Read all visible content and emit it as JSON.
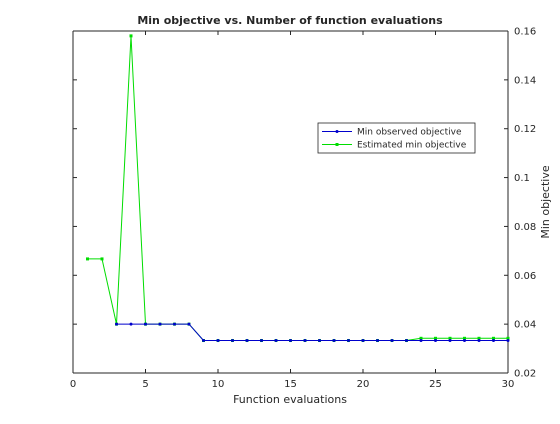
{
  "chart_data": {
    "type": "line",
    "title": "Min objective vs. Number of function evaluations",
    "xlabel": "Function evaluations",
    "ylabel": "Min objective",
    "xlim": [
      0,
      30
    ],
    "ylim": [
      0.02,
      0.16
    ],
    "xticks": [
      0,
      5,
      10,
      15,
      20,
      25,
      30
    ],
    "yticks": [
      0.02,
      0.04,
      0.06,
      0.08,
      0.1,
      0.12,
      0.14,
      0.16
    ],
    "xtick_labels": [
      "0",
      "5",
      "10",
      "15",
      "20",
      "25",
      "30"
    ],
    "ytick_labels": [
      "0.02",
      "0.04",
      "0.06",
      "0.08",
      "0.1",
      "0.12",
      "0.14",
      "0.16"
    ],
    "y_axis_side": "right",
    "grid": false,
    "legend_position": "upper-right",
    "series": [
      {
        "name": "Min observed objective",
        "color": "#0000cc",
        "marker": "dot",
        "x": [
          3,
          4,
          5,
          6,
          7,
          8,
          9,
          10,
          11,
          12,
          13,
          14,
          15,
          16,
          17,
          18,
          19,
          20,
          21,
          22,
          23,
          24,
          25,
          26,
          27,
          28,
          29,
          30
        ],
        "y": [
          0.04,
          0.04,
          0.04,
          0.04,
          0.04,
          0.04,
          0.0333,
          0.0333,
          0.0333,
          0.0333,
          0.0333,
          0.0333,
          0.0333,
          0.0333,
          0.0333,
          0.0333,
          0.0333,
          0.0333,
          0.0333,
          0.0333,
          0.0333,
          0.0333,
          0.0333,
          0.0333,
          0.0333,
          0.0333,
          0.0333,
          0.0333
        ]
      },
      {
        "name": "Estimated min objective",
        "color": "#00dd00",
        "marker": "square",
        "x": [
          1,
          2,
          3,
          4,
          5,
          6,
          7,
          8,
          9,
          10,
          11,
          12,
          13,
          14,
          15,
          16,
          17,
          18,
          19,
          20,
          21,
          22,
          23,
          24,
          25,
          26,
          27,
          28,
          29,
          30
        ],
        "y": [
          0.0667,
          0.0667,
          0.04,
          0.158,
          0.04,
          0.04,
          0.04,
          0.04,
          0.0333,
          0.0333,
          0.0333,
          0.0333,
          0.0333,
          0.0333,
          0.0333,
          0.0333,
          0.0333,
          0.0333,
          0.0333,
          0.0333,
          0.0333,
          0.0333,
          0.0333,
          0.0342,
          0.0342,
          0.0342,
          0.0342,
          0.0342,
          0.0342,
          0.0342
        ]
      }
    ]
  }
}
